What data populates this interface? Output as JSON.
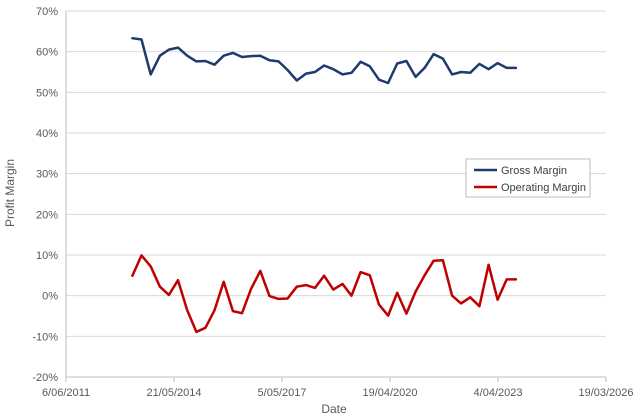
{
  "chart_data": {
    "type": "line",
    "xlabel": "Date",
    "ylabel": "Profit Margin",
    "x_ticks": [
      "6/06/2011",
      "21/05/2014",
      "5/05/2017",
      "19/04/2020",
      "4/04/2023",
      "19/03/2026"
    ],
    "x_tick_dates": [
      "2011-06-06",
      "2014-05-21",
      "2017-05-05",
      "2020-04-19",
      "2023-04-04",
      "2026-03-19"
    ],
    "xlim": [
      "2011-06-06",
      "2026-03-19"
    ],
    "ylim": [
      -20,
      70
    ],
    "y_ticks": [
      -20,
      -10,
      0,
      10,
      20,
      30,
      40,
      50,
      60,
      70
    ],
    "y_tick_labels": [
      "-20%",
      "-10%",
      "0%",
      "10%",
      "20%",
      "30%",
      "40%",
      "50%",
      "60%",
      "70%"
    ],
    "grid": "horizontal",
    "legend_position": "right",
    "x": [
      "2013-03-31",
      "2013-06-30",
      "2013-09-30",
      "2013-12-31",
      "2014-03-31",
      "2014-06-30",
      "2014-09-30",
      "2014-12-31",
      "2015-03-31",
      "2015-06-30",
      "2015-09-30",
      "2015-12-31",
      "2016-03-31",
      "2016-06-30",
      "2016-09-30",
      "2016-12-31",
      "2017-03-31",
      "2017-06-30",
      "2017-09-30",
      "2017-12-31",
      "2018-03-31",
      "2018-06-30",
      "2018-09-30",
      "2018-12-31",
      "2019-03-31",
      "2019-06-30",
      "2019-09-30",
      "2019-12-31",
      "2020-03-31",
      "2020-06-30",
      "2020-09-30",
      "2020-12-31",
      "2021-03-31",
      "2021-06-30",
      "2021-09-30",
      "2021-12-31",
      "2022-03-31",
      "2022-06-30",
      "2022-09-30",
      "2022-12-31",
      "2023-03-31",
      "2023-06-30",
      "2023-09-30"
    ],
    "series": [
      {
        "name": "Gross Margin",
        "color": "#1f3a6e",
        "values": [
          63.3,
          63.0,
          54.4,
          59.0,
          60.5,
          61.0,
          59.0,
          57.6,
          57.7,
          56.8,
          59.0,
          59.7,
          58.7,
          58.9,
          59.0,
          57.9,
          57.6,
          55.5,
          52.9,
          54.6,
          55.0,
          56.6,
          55.7,
          54.4,
          54.8,
          57.5,
          56.4,
          53.1,
          52.3,
          57.1,
          57.7,
          53.8,
          56.0,
          59.4,
          58.3,
          54.4,
          55.0,
          54.8,
          57.0,
          55.7,
          57.2,
          56.0,
          56.0
        ]
      },
      {
        "name": "Operating Margin",
        "color": "#c00000",
        "values": [
          4.9,
          9.9,
          7.2,
          2.2,
          0.2,
          3.8,
          -3.6,
          -8.9,
          -7.9,
          -3.6,
          3.4,
          -3.8,
          -4.3,
          1.7,
          6.1,
          -0.1,
          -0.8,
          -0.7,
          2.2,
          2.6,
          1.9,
          4.9,
          1.5,
          2.9,
          0.0,
          5.8,
          5.0,
          -2.2,
          -4.9,
          0.7,
          -4.4,
          1.0,
          5.0,
          8.6,
          8.7,
          0.0,
          -1.9,
          -0.4,
          -2.6,
          7.6,
          -1.0,
          4.0,
          4.0
        ]
      }
    ]
  }
}
